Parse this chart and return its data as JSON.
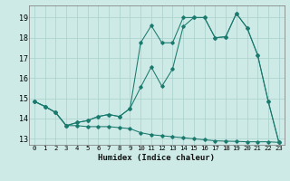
{
  "xlabel": "Humidex (Indice chaleur)",
  "background_color": "#ceeae6",
  "grid_color": "#aed4cf",
  "line_color": "#1a7a6e",
  "xlim": [
    -0.5,
    23.5
  ],
  "ylim": [
    12.7,
    19.6
  ],
  "yticks": [
    13,
    14,
    15,
    16,
    17,
    18,
    19
  ],
  "xticks": [
    0,
    1,
    2,
    3,
    4,
    5,
    6,
    7,
    8,
    9,
    10,
    11,
    12,
    13,
    14,
    15,
    16,
    17,
    18,
    19,
    20,
    21,
    22,
    23
  ],
  "series1_x": [
    0,
    1,
    2,
    3,
    4,
    5,
    6,
    7,
    8,
    9,
    10,
    11,
    12,
    13,
    14,
    15,
    16,
    17,
    18,
    19,
    20,
    21,
    22,
    23
  ],
  "series1_y": [
    14.85,
    14.6,
    14.3,
    13.65,
    13.65,
    13.6,
    13.6,
    13.6,
    13.55,
    13.5,
    13.3,
    13.2,
    13.15,
    13.1,
    13.05,
    13.0,
    12.95,
    12.9,
    12.88,
    12.87,
    12.85,
    12.85,
    12.85,
    12.82
  ],
  "series2_x": [
    0,
    1,
    2,
    3,
    4,
    5,
    6,
    7,
    8,
    9,
    10,
    11,
    12,
    13,
    14,
    15,
    16,
    17,
    18,
    19,
    20,
    21,
    22,
    23
  ],
  "series2_y": [
    14.85,
    14.6,
    14.3,
    13.65,
    13.8,
    13.9,
    14.1,
    14.2,
    14.1,
    14.5,
    15.55,
    16.55,
    15.6,
    16.45,
    18.55,
    19.0,
    19.0,
    18.0,
    18.05,
    19.2,
    18.5,
    17.15,
    14.85,
    12.82
  ],
  "series3_x": [
    0,
    1,
    2,
    3,
    4,
    5,
    6,
    7,
    8,
    9,
    10,
    11,
    12,
    13,
    14,
    15,
    16,
    17,
    18,
    19,
    20,
    21,
    22,
    23
  ],
  "series3_y": [
    14.85,
    14.6,
    14.3,
    13.65,
    13.8,
    13.9,
    14.1,
    14.2,
    14.1,
    14.5,
    17.75,
    18.6,
    17.75,
    17.75,
    19.0,
    19.0,
    19.0,
    18.0,
    18.05,
    19.2,
    18.5,
    17.15,
    14.85,
    12.82
  ]
}
